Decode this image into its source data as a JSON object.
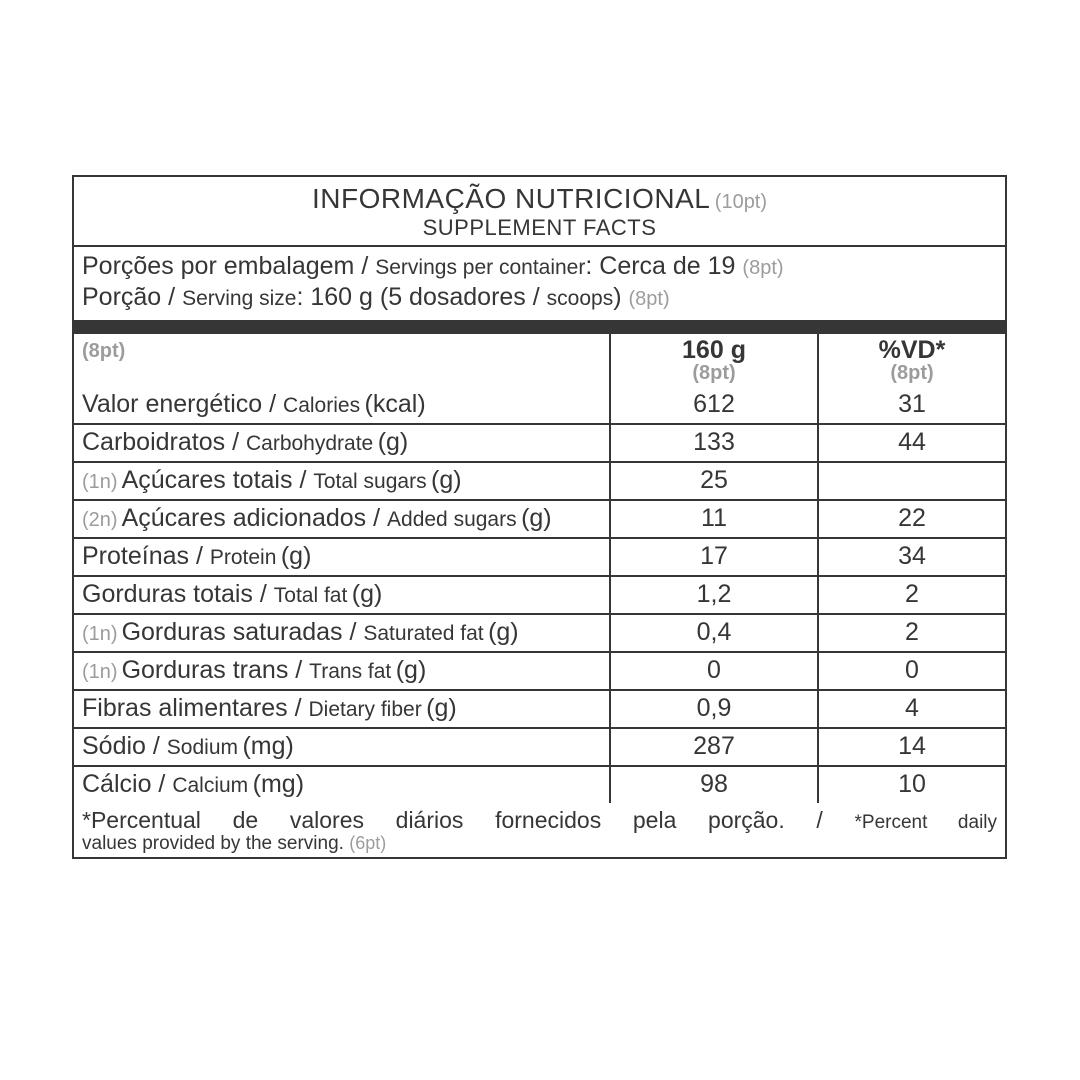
{
  "colors": {
    "ink": "#373636",
    "muted": "#9c9c9c",
    "background": "#ffffff"
  },
  "fonts": {
    "title_pt": 28,
    "title_en": 22,
    "body_pt": 25,
    "body_en": 21,
    "note": 20,
    "footnote_pt": 23,
    "footnote_en": 19
  },
  "header": {
    "title_pt": "INFORMAÇÃO NUTRICIONAL",
    "title_note": "(10pt)",
    "title_en": "SUPPLEMENT FACTS"
  },
  "servings": {
    "per_container_pt": "Porções por embalagem",
    "per_container_en": "Servings per container",
    "per_container_value": "Cerca de 19",
    "per_container_note": "(8pt)",
    "size_pt": "Porção",
    "size_en": "Serving size",
    "size_value_pt": "160 g (5 dosadores",
    "size_value_en": "scoops",
    "size_value_close": ")",
    "size_note": "(8pt)"
  },
  "columns": {
    "name_note": "(8pt)",
    "amount_label": "160 g",
    "amount_note": "(8pt)",
    "dv_label": "%VD*",
    "dv_note": "(8pt)"
  },
  "rows": [
    {
      "prefix": "",
      "pt": "Valor energético",
      "en": "Calories",
      "unit": "(kcal)",
      "amount": "612",
      "dv": "31"
    },
    {
      "prefix": "",
      "pt": "Carboidratos",
      "en": "Carbohydrate",
      "unit": "(g)",
      "amount": "133",
      "dv": "44"
    },
    {
      "prefix": "(1n)",
      "pt": "Açúcares totais",
      "en": "Total sugars",
      "unit": "(g)",
      "amount": "25",
      "dv": ""
    },
    {
      "prefix": "(2n)",
      "pt": "Açúcares adicionados",
      "en": "Added sugars",
      "unit": "(g)",
      "amount": "11",
      "dv": "22"
    },
    {
      "prefix": "",
      "pt": "Proteínas",
      "en": "Protein",
      "unit": "(g)",
      "amount": "17",
      "dv": "34"
    },
    {
      "prefix": "",
      "pt": "Gorduras totais",
      "en": "Total fat",
      "unit": "(g)",
      "amount": "1,2",
      "dv": "2"
    },
    {
      "prefix": "(1n)",
      "pt": "Gorduras saturadas",
      "en": "Saturated fat",
      "unit": "(g)",
      "amount": "0,4",
      "dv": "2"
    },
    {
      "prefix": "(1n)",
      "pt": "Gorduras trans",
      "en": "Trans fat",
      "unit": "(g)",
      "amount": "0",
      "dv": "0"
    },
    {
      "prefix": "",
      "pt": "Fibras alimentares",
      "en": "Dietary fiber",
      "unit": "(g)",
      "amount": "0,9",
      "dv": "4"
    },
    {
      "prefix": "",
      "pt": "Sódio",
      "en": "Sodium",
      "unit": "(mg)",
      "amount": "287",
      "dv": "14"
    },
    {
      "prefix": "",
      "pt": "Cálcio",
      "en": "Calcium",
      "unit": "(mg)",
      "amount": "98",
      "dv": "10"
    }
  ],
  "footnote": {
    "pt": "*Percentual de valores diários fornecidos pela porção. /",
    "en_lead": "*Percent daily",
    "en_rest": "values provided by the serving.",
    "note": "(6pt)"
  }
}
